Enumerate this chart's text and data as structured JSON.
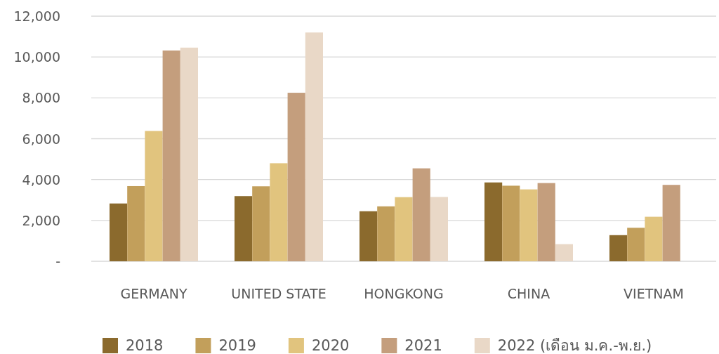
{
  "chart_data": {
    "type": "bar",
    "categories": [
      "GERMANY",
      "UNITED STATE",
      "HONGKONG",
      "CHINA",
      "VIETNAM"
    ],
    "series": [
      {
        "name": "2018",
        "color": "#8b6a2d",
        "values": [
          2830,
          3190,
          2450,
          3860,
          1280
        ]
      },
      {
        "name": "2019",
        "color": "#c29f5b",
        "values": [
          3680,
          3670,
          2690,
          3700,
          1640
        ]
      },
      {
        "name": "2020",
        "color": "#e1c47e",
        "values": [
          6380,
          4800,
          3140,
          3520,
          2180
        ]
      },
      {
        "name": "2021",
        "color": "#c49e7d",
        "values": [
          10320,
          8250,
          4550,
          3830,
          3740
        ]
      },
      {
        "name": "2022 (เดือน ม.ค.-พ.ย.)",
        "color": "#e9d8c7",
        "values": [
          10460,
          11200,
          3150,
          840,
          null
        ]
      }
    ],
    "ylim": [
      0,
      12000
    ],
    "yticks": [
      {
        "value": 0,
        "label": "-"
      },
      {
        "value": 2000,
        "label": "2,000"
      },
      {
        "value": 4000,
        "label": "4,000"
      },
      {
        "value": 6000,
        "label": "6,000"
      },
      {
        "value": 8000,
        "label": "8,000"
      },
      {
        "value": 10000,
        "label": "10,000"
      },
      {
        "value": 12000,
        "label": "12,000"
      }
    ],
    "grid": "y",
    "legend": "bottom"
  }
}
